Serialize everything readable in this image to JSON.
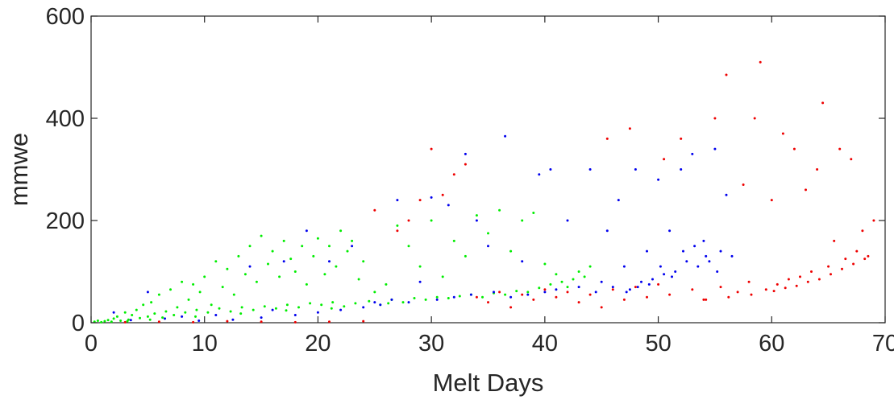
{
  "chart_data": {
    "type": "scatter",
    "title": "",
    "xlabel": "Melt Days",
    "ylabel": "mmwe",
    "xlim": [
      0,
      70
    ],
    "ylim": [
      0,
      600
    ],
    "xticks": [
      0,
      10,
      20,
      30,
      40,
      50,
      60,
      70
    ],
    "yticks": [
      0,
      200,
      400,
      600
    ],
    "xtick_labels": [
      "0",
      "10",
      "20",
      "30",
      "40",
      "50",
      "60",
      "70"
    ],
    "ytick_labels": [
      "0",
      "200",
      "400",
      "600"
    ],
    "grid": false,
    "legend": "none",
    "series": [
      {
        "color": "#00ee00",
        "points": [
          [
            0.3,
            2
          ],
          [
            0.6,
            4
          ],
          [
            0.9,
            1
          ],
          [
            1.2,
            3
          ],
          [
            1.5,
            5
          ],
          [
            1.8,
            2
          ],
          [
            2.0,
            8
          ],
          [
            2.3,
            12
          ],
          [
            2.6,
            4
          ],
          [
            3.0,
            20
          ],
          [
            3.3,
            6
          ],
          [
            3.6,
            15
          ],
          [
            4.0,
            25
          ],
          [
            4.3,
            9
          ],
          [
            4.6,
            35
          ],
          [
            5.0,
            12
          ],
          [
            5.3,
            40
          ],
          [
            5.6,
            18
          ],
          [
            6.0,
            55
          ],
          [
            6.3,
            10
          ],
          [
            6.6,
            22
          ],
          [
            7.0,
            65
          ],
          [
            7.3,
            15
          ],
          [
            7.6,
            30
          ],
          [
            8.0,
            80
          ],
          [
            8.3,
            20
          ],
          [
            8.6,
            45
          ],
          [
            9.0,
            75
          ],
          [
            9.3,
            25
          ],
          [
            9.6,
            60
          ],
          [
            10.0,
            90
          ],
          [
            10.3,
            20
          ],
          [
            10.6,
            35
          ],
          [
            11.0,
            120
          ],
          [
            11.3,
            28
          ],
          [
            11.6,
            70
          ],
          [
            12.0,
            105
          ],
          [
            12.3,
            22
          ],
          [
            12.6,
            55
          ],
          [
            13.0,
            130
          ],
          [
            13.3,
            30
          ],
          [
            13.6,
            95
          ],
          [
            14.0,
            150
          ],
          [
            14.3,
            25
          ],
          [
            14.6,
            80
          ],
          [
            15.0,
            170
          ],
          [
            15.3,
            32
          ],
          [
            15.6,
            115
          ],
          [
            16.0,
            140
          ],
          [
            16.3,
            28
          ],
          [
            16.6,
            90
          ],
          [
            17.0,
            160
          ],
          [
            17.3,
            35
          ],
          [
            17.6,
            125
          ],
          [
            18.0,
            100
          ],
          [
            18.3,
            30
          ],
          [
            18.6,
            150
          ],
          [
            19.0,
            75
          ],
          [
            19.3,
            38
          ],
          [
            19.6,
            130
          ],
          [
            20.0,
            165
          ],
          [
            20.3,
            35
          ],
          [
            20.6,
            95
          ],
          [
            21.0,
            150
          ],
          [
            21.3,
            40
          ],
          [
            21.6,
            110
          ],
          [
            22.0,
            180
          ],
          [
            22.3,
            32
          ],
          [
            22.6,
            140
          ],
          [
            23.0,
            160
          ],
          [
            23.3,
            38
          ],
          [
            23.6,
            85
          ],
          [
            24.0,
            120
          ],
          [
            24.5,
            42
          ],
          [
            25.0,
            60
          ],
          [
            25.5,
            35
          ],
          [
            26.0,
            75
          ],
          [
            26.5,
            45
          ],
          [
            27.0,
            190
          ],
          [
            27.5,
            40
          ],
          [
            28.0,
            150
          ],
          [
            28.5,
            48
          ],
          [
            29.0,
            110
          ],
          [
            29.5,
            45
          ],
          [
            30.0,
            200
          ],
          [
            30.5,
            50
          ],
          [
            31.0,
            90
          ],
          [
            31.5,
            48
          ],
          [
            32.0,
            160
          ],
          [
            32.5,
            52
          ],
          [
            33.0,
            130
          ],
          [
            33.5,
            55
          ],
          [
            34.0,
            210
          ],
          [
            34.5,
            50
          ],
          [
            35.0,
            175
          ],
          [
            35.5,
            58
          ],
          [
            36.0,
            220
          ],
          [
            36.5,
            55
          ],
          [
            37.0,
            140
          ],
          [
            37.5,
            62
          ],
          [
            38.0,
            200
          ],
          [
            38.5,
            60
          ],
          [
            39.0,
            215
          ],
          [
            39.5,
            68
          ],
          [
            40.0,
            115
          ],
          [
            40.5,
            75
          ],
          [
            41.0,
            95
          ],
          [
            41.5,
            80
          ],
          [
            42.0,
            70
          ],
          [
            42.5,
            85
          ],
          [
            43.0,
            100
          ],
          [
            43.5,
            90
          ],
          [
            44.0,
            110
          ],
          [
            26.2,
            38
          ],
          [
            21.2,
            28
          ],
          [
            17.2,
            24
          ],
          [
            13.2,
            18
          ],
          [
            9.2,
            12
          ],
          [
            5.2,
            6
          ],
          [
            3.2,
            3
          ]
        ]
      },
      {
        "color": "#0000ee",
        "points": [
          [
            2.0,
            20
          ],
          [
            3.5,
            5
          ],
          [
            5.0,
            60
          ],
          [
            6.5,
            8
          ],
          [
            8.0,
            12
          ],
          [
            9.5,
            4
          ],
          [
            11.0,
            15
          ],
          [
            12.5,
            6
          ],
          [
            14.0,
            110
          ],
          [
            15.0,
            10
          ],
          [
            16.0,
            25
          ],
          [
            17.0,
            120
          ],
          [
            18.0,
            15
          ],
          [
            19.0,
            180
          ],
          [
            20.0,
            20
          ],
          [
            21.0,
            120
          ],
          [
            22.0,
            25
          ],
          [
            23.0,
            150
          ],
          [
            24.0,
            30
          ],
          [
            25.0,
            40
          ],
          [
            25.5,
            35
          ],
          [
            26.5,
            45
          ],
          [
            27.0,
            240
          ],
          [
            28.0,
            40
          ],
          [
            29.0,
            80
          ],
          [
            30.0,
            245
          ],
          [
            30.5,
            45
          ],
          [
            31.5,
            230
          ],
          [
            32.0,
            50
          ],
          [
            33.0,
            330
          ],
          [
            33.5,
            55
          ],
          [
            34.0,
            200
          ],
          [
            35.0,
            150
          ],
          [
            35.5,
            60
          ],
          [
            36.5,
            365
          ],
          [
            37.0,
            50
          ],
          [
            38.0,
            120
          ],
          [
            38.5,
            55
          ],
          [
            39.5,
            290
          ],
          [
            40.0,
            60
          ],
          [
            40.5,
            300
          ],
          [
            41.0,
            65
          ],
          [
            42.0,
            200
          ],
          [
            43.0,
            70
          ],
          [
            44.0,
            300
          ],
          [
            44.5,
            60
          ],
          [
            45.0,
            80
          ],
          [
            45.5,
            180
          ],
          [
            46.0,
            70
          ],
          [
            46.5,
            240
          ],
          [
            47.0,
            110
          ],
          [
            47.5,
            65
          ],
          [
            48.0,
            300
          ],
          [
            48.5,
            80
          ],
          [
            49.0,
            140
          ],
          [
            49.5,
            85
          ],
          [
            50.0,
            280
          ],
          [
            50.5,
            95
          ],
          [
            51.0,
            180
          ],
          [
            51.5,
            100
          ],
          [
            52.0,
            300
          ],
          [
            52.5,
            120
          ],
          [
            53.0,
            330
          ],
          [
            53.5,
            110
          ],
          [
            54.0,
            160
          ],
          [
            54.5,
            120
          ],
          [
            55.0,
            340
          ],
          [
            55.5,
            140
          ],
          [
            56.0,
            250
          ],
          [
            56.5,
            130
          ],
          [
            52.2,
            140
          ],
          [
            53.2,
            150
          ],
          [
            54.2,
            130
          ],
          [
            55.2,
            100
          ],
          [
            51.2,
            90
          ],
          [
            50.2,
            110
          ],
          [
            49.2,
            75
          ],
          [
            48.2,
            70
          ],
          [
            47.2,
            60
          ]
        ]
      },
      {
        "color": "#ee0000",
        "points": [
          [
            3.0,
            1
          ],
          [
            6.0,
            2
          ],
          [
            9.0,
            1
          ],
          [
            12.0,
            3
          ],
          [
            15.0,
            2
          ],
          [
            18.0,
            1
          ],
          [
            21.0,
            2
          ],
          [
            24.0,
            3
          ],
          [
            25.0,
            220
          ],
          [
            27.0,
            180
          ],
          [
            28.0,
            200
          ],
          [
            29.0,
            240
          ],
          [
            30.0,
            340
          ],
          [
            31.0,
            250
          ],
          [
            32.0,
            290
          ],
          [
            33.0,
            310
          ],
          [
            34.0,
            50
          ],
          [
            35.0,
            40
          ],
          [
            36.0,
            60
          ],
          [
            37.0,
            30
          ],
          [
            38.0,
            55
          ],
          [
            39.0,
            45
          ],
          [
            40.0,
            65
          ],
          [
            41.0,
            50
          ],
          [
            42.0,
            60
          ],
          [
            43.0,
            40
          ],
          [
            44.0,
            55
          ],
          [
            45.0,
            30
          ],
          [
            45.5,
            360
          ],
          [
            46.0,
            65
          ],
          [
            47.0,
            45
          ],
          [
            47.5,
            380
          ],
          [
            48.0,
            70
          ],
          [
            49.0,
            50
          ],
          [
            50.0,
            75
          ],
          [
            50.5,
            320
          ],
          [
            51.0,
            55
          ],
          [
            52.0,
            360
          ],
          [
            53.0,
            65
          ],
          [
            54.0,
            45
          ],
          [
            55.0,
            400
          ],
          [
            55.5,
            70
          ],
          [
            56.0,
            485
          ],
          [
            57.0,
            60
          ],
          [
            57.5,
            270
          ],
          [
            58.0,
            80
          ],
          [
            58.5,
            400
          ],
          [
            59.0,
            510
          ],
          [
            59.5,
            65
          ],
          [
            60.0,
            240
          ],
          [
            60.5,
            75
          ],
          [
            61.0,
            370
          ],
          [
            61.5,
            85
          ],
          [
            62.0,
            340
          ],
          [
            62.5,
            90
          ],
          [
            63.0,
            260
          ],
          [
            63.5,
            100
          ],
          [
            64.0,
            300
          ],
          [
            64.5,
            430
          ],
          [
            65.0,
            110
          ],
          [
            65.5,
            160
          ],
          [
            66.0,
            340
          ],
          [
            66.5,
            125
          ],
          [
            67.0,
            320
          ],
          [
            67.5,
            140
          ],
          [
            68.0,
            180
          ],
          [
            68.5,
            130
          ],
          [
            69.0,
            200
          ],
          [
            66.2,
            105
          ],
          [
            67.2,
            115
          ],
          [
            68.2,
            125
          ],
          [
            65.2,
            95
          ],
          [
            64.2,
            85
          ],
          [
            63.2,
            80
          ],
          [
            62.2,
            72
          ],
          [
            61.2,
            68
          ],
          [
            60.2,
            62
          ],
          [
            58.2,
            55
          ],
          [
            56.2,
            50
          ],
          [
            54.2,
            45
          ]
        ]
      }
    ]
  }
}
